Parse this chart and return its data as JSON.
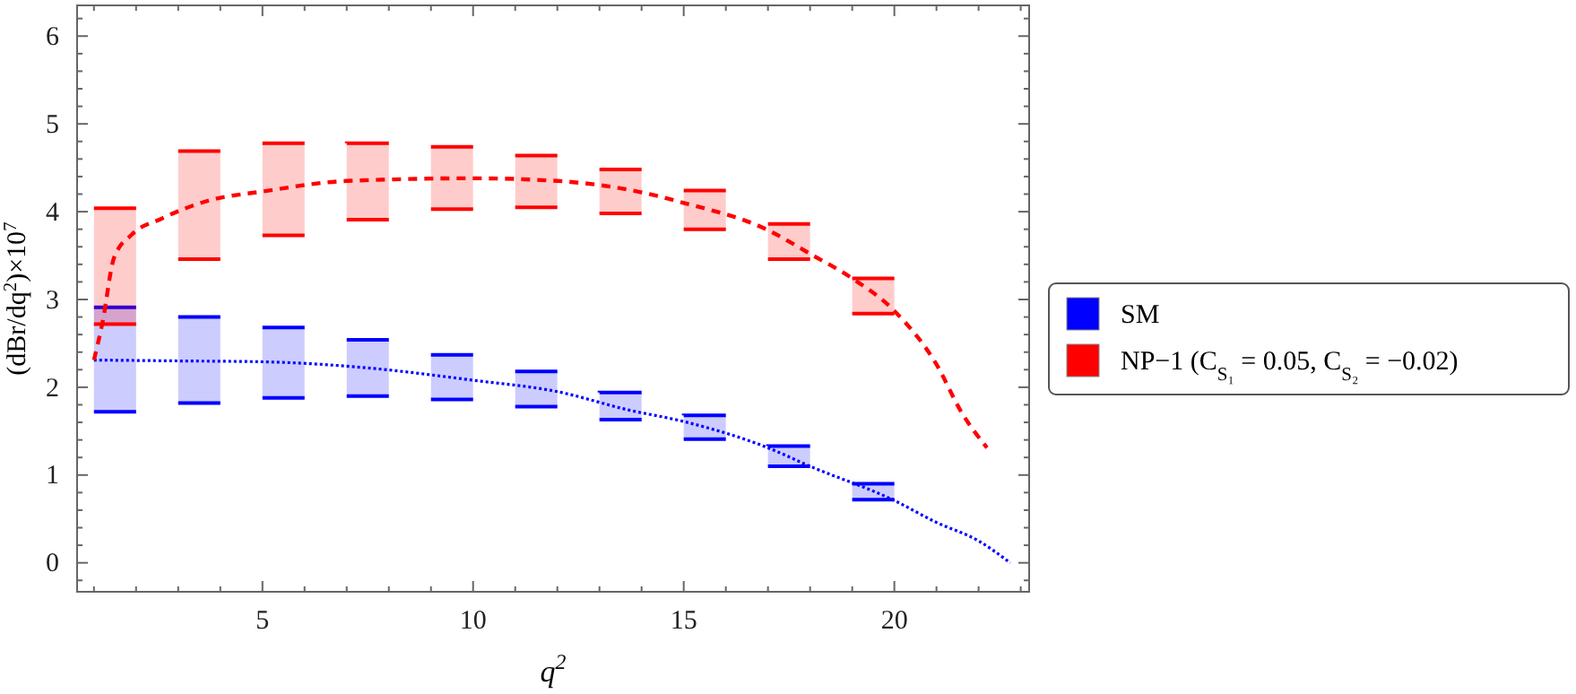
{
  "chart_data": {
    "type": "bar",
    "xlabel": "q$^{2}$",
    "ylabel": "(dBr/dq$^{2}$)×10$^{7}$",
    "legend": "right",
    "grid": false,
    "xlim": [
      0.6,
      23.2
    ],
    "ylim": [
      -0.33,
      6.35
    ],
    "xticks": [
      {
        "value": 1,
        "label": null
      },
      {
        "value": 2,
        "label": null
      },
      {
        "value": 3,
        "label": null
      },
      {
        "value": 4,
        "label": null
      },
      5,
      {
        "value": 6,
        "label": null
      },
      {
        "value": 7,
        "label": null
      },
      {
        "value": 8,
        "label": null
      },
      {
        "value": 9,
        "label": null
      },
      10,
      {
        "value": 11,
        "label": null
      },
      {
        "value": 12,
        "label": null
      },
      {
        "value": 13,
        "label": null
      },
      {
        "value": 14,
        "label": null
      },
      15,
      {
        "value": 16,
        "label": null
      },
      {
        "value": 17,
        "label": null
      },
      {
        "value": 18,
        "label": null
      },
      {
        "value": 19,
        "label": null
      },
      20,
      {
        "value": 21,
        "label": null
      },
      {
        "value": 22,
        "label": null
      },
      {
        "value": 23,
        "label": null
      }
    ],
    "yticks": [
      {
        "value": -0.2,
        "label": null
      },
      0,
      {
        "value": 0.2,
        "label": null
      },
      {
        "value": 0.4,
        "label": null
      },
      {
        "value": 0.6,
        "label": null
      },
      {
        "value": 0.8,
        "label": null
      },
      1,
      {
        "value": 1.2,
        "label": null
      },
      {
        "value": 1.4,
        "label": null
      },
      {
        "value": 1.6,
        "label": null
      },
      {
        "value": 1.8,
        "label": null
      },
      2,
      {
        "value": 2.2,
        "label": null
      },
      {
        "value": 2.4,
        "label": null
      },
      {
        "value": 2.6,
        "label": null
      },
      {
        "value": 2.8,
        "label": null
      },
      3,
      {
        "value": 3.2,
        "label": null
      },
      {
        "value": 3.4,
        "label": null
      },
      {
        "value": 3.6,
        "label": null
      },
      {
        "value": 3.8,
        "label": null
      },
      4,
      {
        "value": 4.2,
        "label": null
      },
      {
        "value": 4.4,
        "label": null
      },
      {
        "value": 4.6,
        "label": null
      },
      {
        "value": 4.8,
        "label": null
      },
      5,
      {
        "value": 5.2,
        "label": null
      },
      {
        "value": 5.4,
        "label": null
      },
      {
        "value": 5.6,
        "label": null
      },
      {
        "value": 5.8,
        "label": null
      },
      6,
      {
        "value": 6.2,
        "label": null
      }
    ],
    "series": [
      {
        "name": "SM",
        "color": "#0000ff",
        "x": [
          1.5,
          3.5,
          5.5,
          7.5,
          9.5,
          11.5,
          13.5,
          15.5,
          17.5,
          19.5
        ],
        "base": [
          1.72,
          1.82,
          1.88,
          1.9,
          1.86,
          1.78,
          1.63,
          1.41,
          1.1,
          0.72
        ],
        "values": [
          1.19,
          0.98,
          0.8,
          0.64,
          0.51,
          0.4,
          0.31,
          0.27,
          0.23,
          0.18
        ]
      },
      {
        "name": "NP−1 (C$_{S₁}$ = 0.05, C$_{S₂}$ = −0.02)",
        "color": "#ff0000",
        "x": [
          1.5,
          3.5,
          5.5,
          7.5,
          9.5,
          11.5,
          13.5,
          15.5,
          17.5,
          19.5
        ],
        "base": [
          2.72,
          3.46,
          3.73,
          3.91,
          4.03,
          4.05,
          3.98,
          3.8,
          3.46,
          2.84
        ],
        "values": [
          1.32,
          1.23,
          1.05,
          0.87,
          0.71,
          0.59,
          0.5,
          0.44,
          0.4,
          0.4
        ]
      },
      {
        "type": "line",
        "color": "#0000ff",
        "line_style": "dotted",
        "x": [
          1,
          3,
          5,
          7.5,
          10,
          12,
          13.7,
          15,
          17,
          18,
          20,
          21,
          22,
          22.75
        ],
        "values": [
          2.31,
          2.3,
          2.29,
          2.22,
          2.08,
          1.95,
          1.74,
          1.61,
          1.31,
          1.1,
          0.71,
          0.46,
          0.25,
          0
        ]
      },
      {
        "type": "line",
        "color": "#ff0000",
        "line_style": "dashed",
        "x": [
          1,
          1.2,
          1.48,
          1.9,
          2.6,
          3.75,
          5,
          7,
          10,
          12,
          14,
          15,
          17,
          18,
          19,
          20,
          21,
          21.6,
          22.2
        ],
        "values": [
          2.31,
          2.73,
          3.48,
          3.74,
          3.92,
          4.13,
          4.23,
          4.35,
          4.38,
          4.35,
          4.22,
          4.1,
          3.79,
          3.52,
          3.24,
          2.87,
          2.26,
          1.71,
          1.31
        ]
      }
    ]
  }
}
